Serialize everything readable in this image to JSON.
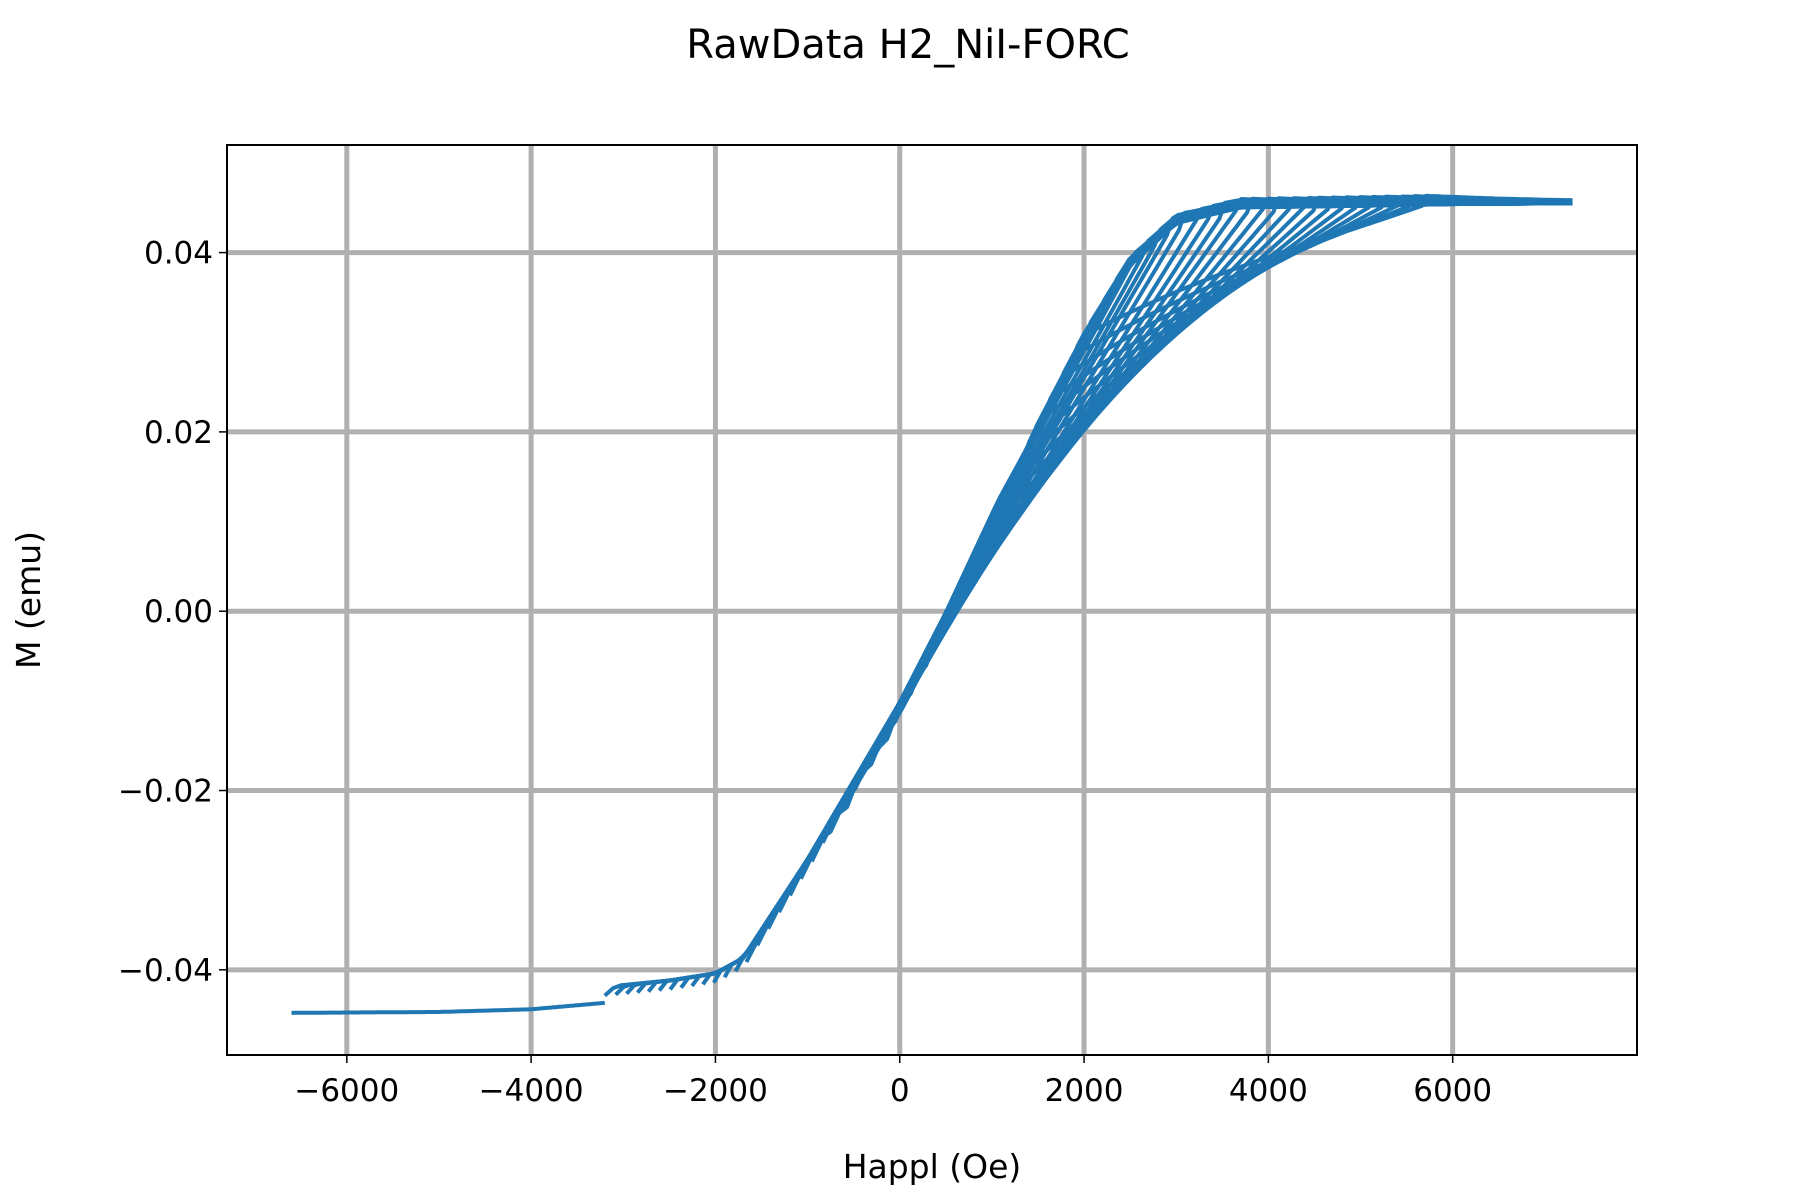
{
  "chart_data": {
    "type": "line",
    "title": "RawData H2_NiI-FORC",
    "xlabel": "Happl (Oe)",
    "ylabel": "M (emu)",
    "xlim": [
      -7300,
      8000
    ],
    "ylim": [
      -0.0495,
      0.052
    ],
    "xticks": [
      -6000,
      -4000,
      -2000,
      0,
      2000,
      4000,
      6000
    ],
    "xtick_labels": [
      "−6000",
      "−4000",
      "−2000",
      "0",
      "2000",
      "4000",
      "6000"
    ],
    "yticks": [
      -0.04,
      -0.02,
      0.0,
      0.02,
      0.04
    ],
    "ytick_labels": [
      "−0.04",
      "−0.02",
      "0.00",
      "0.02",
      "0.04"
    ],
    "grid": true,
    "legend": "none",
    "series_color": "#1f77b4",
    "grid_color": "#b0b0b0",
    "description_series": {
      "name": "",
      "forc_count": 45,
      "reversal_field_range": [
        -3200,
        2000
      ],
      "max_field": 7300,
      "saturation_positive": 0.0455,
      "saturation_negative": -0.0448,
      "envelope_points": [
        [
          -6600,
          -0.0448
        ],
        [
          -5000,
          -0.0447
        ],
        [
          -4000,
          -0.0444
        ],
        [
          -3000,
          -0.0435
        ],
        [
          -2500,
          -0.043
        ],
        [
          -2000,
          -0.0422
        ],
        [
          -1700,
          -0.0405
        ],
        [
          -1000,
          -0.0295
        ],
        [
          0,
          -0.012
        ],
        [
          500,
          -0.002
        ],
        [
          1000,
          0.009
        ],
        [
          1500,
          0.02
        ],
        [
          2000,
          0.03
        ],
        [
          2500,
          0.0385
        ],
        [
          3000,
          0.0432
        ],
        [
          3700,
          0.045
        ],
        [
          5000,
          0.0452
        ],
        [
          6000,
          0.0454
        ],
        [
          7300,
          0.0455
        ]
      ]
    }
  }
}
